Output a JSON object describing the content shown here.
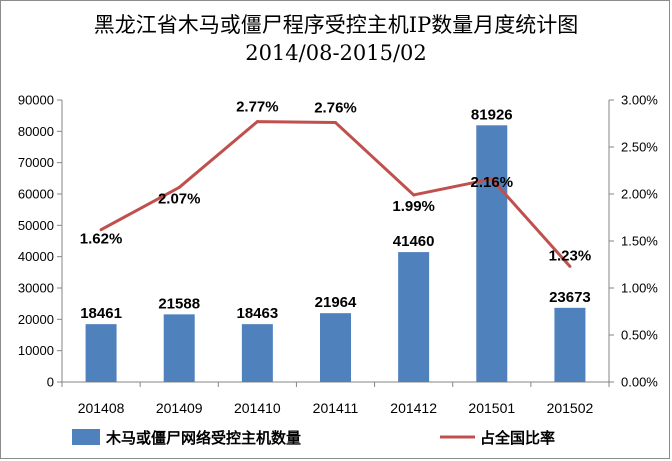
{
  "chart_data": {
    "type": "bar",
    "title_line1": "黑龙江省木马或僵尸程序受控主机IP数量月度统计图",
    "title_line2": "2014/08-2015/02",
    "categories": [
      "201408",
      "201409",
      "201410",
      "201411",
      "201412",
      "201501",
      "201502"
    ],
    "series": [
      {
        "name": "木马或僵尸网络受控主机数量",
        "type": "bar",
        "axis": "left",
        "color": "#4f81bd",
        "values": [
          18461,
          21588,
          18463,
          21964,
          41460,
          81926,
          23673
        ]
      },
      {
        "name": "占全国比率",
        "type": "line",
        "axis": "right",
        "color": "#c0504d",
        "values": [
          1.62,
          2.07,
          2.77,
          2.76,
          1.99,
          2.16,
          1.23
        ],
        "labels": [
          "1.62%",
          "2.07%",
          "2.77%",
          "2.76%",
          "1.99%",
          "2.16%",
          "1.23%"
        ]
      }
    ],
    "y_left": {
      "range": [
        0,
        90000
      ],
      "ticks": [
        "0",
        "10000",
        "20000",
        "30000",
        "40000",
        "50000",
        "60000",
        "70000",
        "80000",
        "90000"
      ]
    },
    "y_right": {
      "range": [
        0,
        3
      ],
      "ticks": [
        "0.00%",
        "0.50%",
        "1.00%",
        "1.50%",
        "2.00%",
        "2.50%",
        "3.00%"
      ]
    },
    "grid": false,
    "legend_position": "bottom"
  }
}
